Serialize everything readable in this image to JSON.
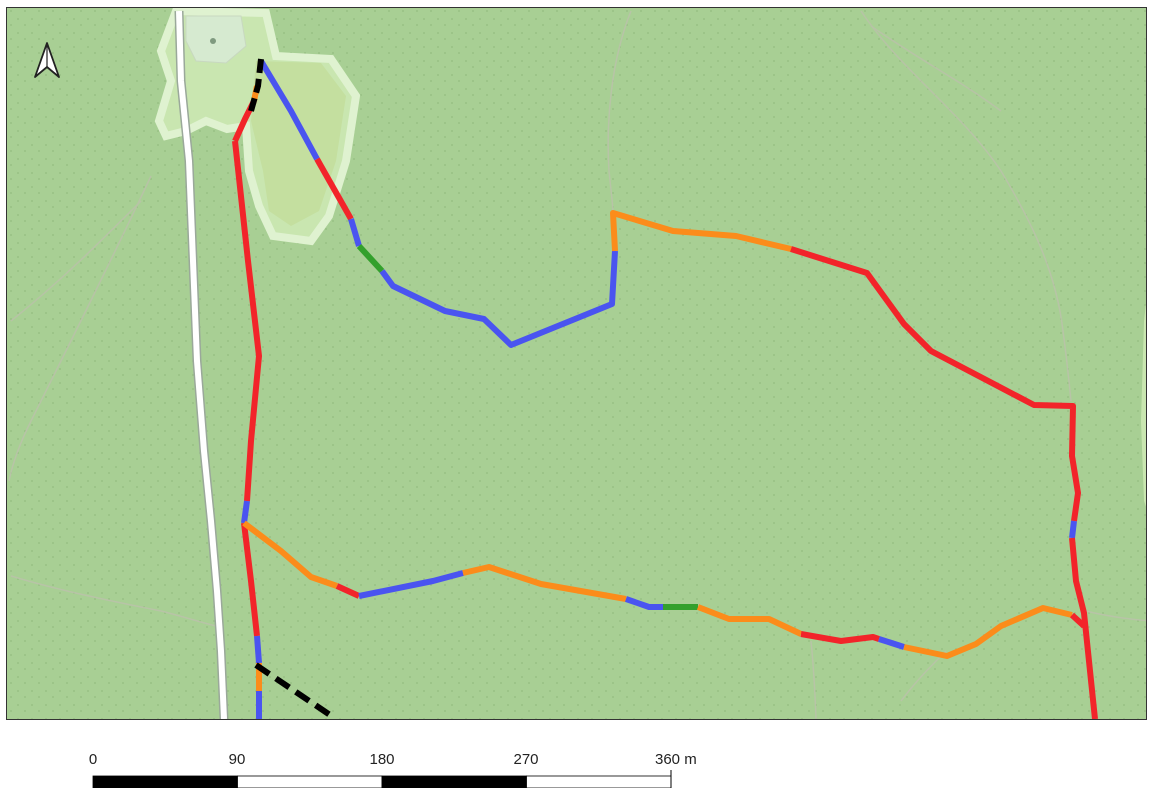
{
  "map": {
    "north_arrow": "north-arrow-icon",
    "colors": {
      "background": "#a8cf94",
      "forest_dots": "#93bd7f",
      "meadow": "#c9e6b0",
      "meadow_border": "#dff2d0",
      "road": "#ffffff",
      "road_casing": "#9aa89a",
      "path": "#b9c2a8",
      "red": "#f2242a",
      "orange": "#fb8c1b",
      "blue": "#4a54f0",
      "green": "#33a02c",
      "black": "#000000"
    }
  },
  "scale_bar": {
    "labels": [
      "0",
      "90",
      "180",
      "270",
      "360 m"
    ]
  }
}
